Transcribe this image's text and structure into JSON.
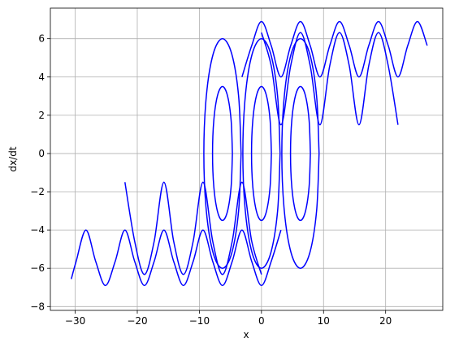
{
  "chart_data": {
    "type": "line",
    "x_label": "x",
    "y_label": "dx/dt",
    "color": "#0000ff",
    "grid": true,
    "xlim": [
      -34,
      29.2
    ],
    "ylim": [
      -8.2,
      7.6
    ],
    "xticks": [
      {
        "value": -30,
        "label": "−30"
      },
      {
        "value": -20,
        "label": "−20"
      },
      {
        "value": -10,
        "label": "−10"
      },
      0,
      10,
      20
    ],
    "yticks": [
      {
        "value": -8,
        "label": "−8"
      },
      {
        "value": -6,
        "label": "−6"
      },
      {
        "value": -4,
        "label": "−4"
      },
      {
        "value": -2,
        "label": "−2"
      },
      0,
      2,
      4,
      6
    ],
    "series": [
      {
        "x": [
          -3.14,
          -1.57,
          0,
          1.57,
          3.14,
          4.71,
          6.28,
          7.85,
          9.42,
          11.0,
          12.57,
          14.14,
          15.71,
          17.28,
          18.85,
          20.42,
          21.99,
          23.56,
          25.13,
          26.7
        ],
        "values": [
          4.0,
          5.64,
          6.9,
          5.64,
          4.0,
          5.64,
          6.9,
          5.64,
          4.0,
          5.64,
          6.9,
          5.64,
          4.0,
          5.64,
          6.9,
          5.64,
          4.0,
          5.64,
          6.9,
          5.64
        ]
      },
      {
        "x": [
          0,
          1.57,
          3.14,
          4.71,
          6.28,
          7.85,
          9.42,
          11.0,
          12.57,
          14.14,
          15.71,
          17.28,
          18.85,
          20.42,
          21.99
        ],
        "values": [
          6.32,
          4.59,
          1.5,
          4.59,
          6.32,
          4.59,
          1.5,
          4.59,
          6.32,
          4.59,
          1.5,
          4.59,
          6.32,
          4.59,
          1.5
        ]
      },
      {
        "x": [
          3.14,
          1.57,
          0,
          -1.57,
          -3.14,
          -4.71,
          -6.28,
          -7.85,
          -9.42,
          -11.0,
          -12.57,
          -14.14,
          -15.71,
          -17.28,
          -18.85,
          -20.42,
          -21.99,
          -23.56,
          -25.13,
          -26.7,
          -28.27,
          -29.85,
          -30.63
        ],
        "values": [
          -4.0,
          -5.64,
          -6.9,
          -5.64,
          -4.0,
          -5.64,
          -6.9,
          -5.64,
          -4.0,
          -5.64,
          -6.9,
          -5.64,
          -4.0,
          -5.64,
          -6.9,
          -5.64,
          -4.0,
          -5.64,
          -6.9,
          -5.64,
          -4.0,
          -5.64,
          -6.56
        ]
      },
      {
        "x": [
          0,
          -1.57,
          -3.14,
          -4.71,
          -6.28,
          -7.85,
          -9.42,
          -11.0,
          -12.57,
          -14.14,
          -15.71,
          -17.28,
          -18.85,
          -20.42,
          -21.99
        ],
        "values": [
          -6.32,
          -4.59,
          -1.5,
          -4.59,
          -6.32,
          -4.59,
          -1.5,
          -4.59,
          -6.32,
          -4.59,
          -1.5,
          -4.59,
          -6.32,
          -4.59,
          -1.5
        ]
      },
      {
        "x": [
          3,
          2.6,
          1.5,
          0,
          -1.5,
          -2.6,
          -3,
          -2.6,
          -1.5,
          0,
          1.5,
          2.6,
          3
        ],
        "values": [
          0,
          3,
          5.2,
          6,
          5.2,
          3,
          0,
          -3,
          -5.2,
          -6,
          -5.2,
          -3,
          0
        ]
      },
      {
        "x": [
          1.6,
          1.39,
          0.8,
          0,
          -0.8,
          -1.39,
          -1.6,
          -1.39,
          -0.8,
          0,
          0.8,
          1.39,
          1.6
        ],
        "values": [
          0,
          1.75,
          3.03,
          3.5,
          3.03,
          1.75,
          0,
          -1.75,
          -3.03,
          -3.5,
          -3.03,
          -1.75,
          0
        ]
      },
      {
        "x": [
          9.28,
          8.88,
          7.78,
          6.28,
          4.78,
          3.68,
          3.28,
          3.68,
          4.78,
          6.28,
          7.78,
          8.88,
          9.28
        ],
        "values": [
          0,
          3,
          5.2,
          6,
          5.2,
          3,
          0,
          -3,
          -5.2,
          -6,
          -5.2,
          -3,
          0
        ]
      },
      {
        "x": [
          7.88,
          7.67,
          7.08,
          6.28,
          5.48,
          4.89,
          4.68,
          4.89,
          5.48,
          6.28,
          7.08,
          7.67,
          7.88
        ],
        "values": [
          0,
          1.75,
          3.03,
          3.5,
          3.03,
          1.75,
          0,
          -1.75,
          -3.03,
          -3.5,
          -3.03,
          -1.75,
          0
        ]
      },
      {
        "x": [
          -3.28,
          -3.68,
          -4.78,
          -6.28,
          -7.78,
          -8.88,
          -9.28,
          -8.88,
          -7.78,
          -6.28,
          -4.78,
          -3.68,
          -3.28
        ],
        "values": [
          0,
          3,
          5.2,
          6,
          5.2,
          3,
          0,
          -3,
          -5.2,
          -6,
          -5.2,
          -3,
          0
        ]
      },
      {
        "x": [
          -4.68,
          -4.89,
          -5.48,
          -6.28,
          -7.08,
          -7.67,
          -7.88,
          -7.67,
          -7.08,
          -6.28,
          -5.48,
          -4.89,
          -4.68
        ],
        "values": [
          0,
          1.75,
          3.03,
          3.5,
          3.03,
          1.75,
          0,
          -1.75,
          -3.03,
          -3.5,
          -3.03,
          -1.75,
          0
        ]
      }
    ]
  }
}
